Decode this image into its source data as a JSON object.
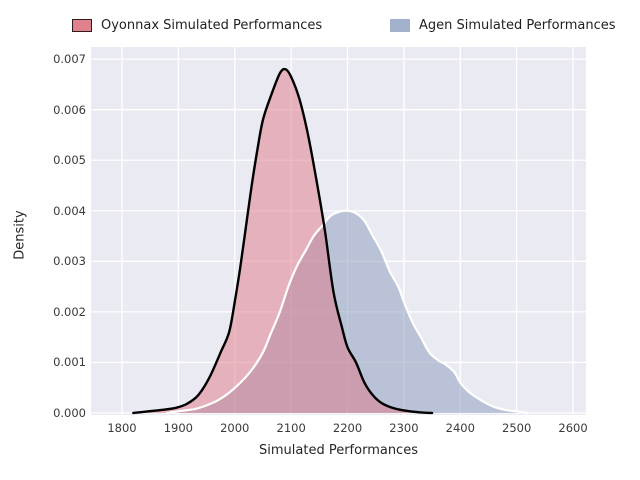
{
  "legend": {
    "items": [
      {
        "label": "Oyonnax Simulated Performances",
        "swatch_fill": "#e0818e",
        "swatch_border": "#2f1b1e"
      },
      {
        "label": "Agen Simulated Performances",
        "swatch_fill": "#a2b0cc",
        "swatch_border": "transparent"
      }
    ]
  },
  "axes": {
    "xlabel": "Simulated Performances",
    "ylabel": "Density"
  },
  "chart_data": {
    "type": "area",
    "title": "",
    "xlabel": "Simulated Performances",
    "ylabel": "Density",
    "xlim": [
      1745,
      2623
    ],
    "ylim": [
      -4e-05,
      0.00724
    ],
    "grid": true,
    "legend_position": "top",
    "plot_bg": "#eaeaf2",
    "grid_color": "#ffffff",
    "x_ticks": [
      {
        "value": 1800,
        "label": "1800"
      },
      {
        "value": 1900,
        "label": "1900"
      },
      {
        "value": 2000,
        "label": "2000"
      },
      {
        "value": 2100,
        "label": "2100"
      },
      {
        "value": 2200,
        "label": "2200"
      },
      {
        "value": 2300,
        "label": "2300"
      },
      {
        "value": 2400,
        "label": "2400"
      },
      {
        "value": 2500,
        "label": "2500"
      },
      {
        "value": 2600,
        "label": "2600"
      }
    ],
    "y_ticks": [
      {
        "value": 0.0,
        "label": "0.000"
      },
      {
        "value": 0.001,
        "label": "0.001"
      },
      {
        "value": 0.002,
        "label": "0.002"
      },
      {
        "value": 0.003,
        "label": "0.003"
      },
      {
        "value": 0.004,
        "label": "0.004"
      },
      {
        "value": 0.005,
        "label": "0.005"
      },
      {
        "value": 0.006,
        "label": "0.006"
      },
      {
        "value": 0.007,
        "label": "0.007"
      }
    ],
    "series": [
      {
        "name": "Agen Simulated Performances",
        "line_color": "#ffffff",
        "fill_color": "#889aba",
        "fill_opacity": 0.5,
        "line_width": 2.2,
        "points": [
          [
            1880,
            0
          ],
          [
            1905,
            4e-05
          ],
          [
            1930,
            8e-05
          ],
          [
            1950,
            0.00015
          ],
          [
            1970,
            0.00025
          ],
          [
            1990,
            0.0004
          ],
          [
            2010,
            0.0006
          ],
          [
            2030,
            0.00085
          ],
          [
            2050,
            0.0012
          ],
          [
            2065,
            0.0016
          ],
          [
            2080,
            0.002
          ],
          [
            2095,
            0.0025
          ],
          [
            2110,
            0.0029
          ],
          [
            2125,
            0.0032
          ],
          [
            2140,
            0.0035
          ],
          [
            2155,
            0.0037
          ],
          [
            2170,
            0.0039
          ],
          [
            2185,
            0.00398
          ],
          [
            2200,
            0.004
          ],
          [
            2215,
            0.00395
          ],
          [
            2230,
            0.0038
          ],
          [
            2245,
            0.0035
          ],
          [
            2260,
            0.0032
          ],
          [
            2275,
            0.0028
          ],
          [
            2290,
            0.0025
          ],
          [
            2300,
            0.0022
          ],
          [
            2315,
            0.0018
          ],
          [
            2330,
            0.0015
          ],
          [
            2345,
            0.0012
          ],
          [
            2360,
            0.00105
          ],
          [
            2375,
            0.00095
          ],
          [
            2390,
            0.0008
          ],
          [
            2400,
            0.0006
          ],
          [
            2415,
            0.00042
          ],
          [
            2430,
            0.0003
          ],
          [
            2445,
            0.0002
          ],
          [
            2460,
            0.00012
          ],
          [
            2480,
            6e-05
          ],
          [
            2500,
            3e-05
          ],
          [
            2520,
            0
          ]
        ]
      },
      {
        "name": "Oyonnax Simulated Performances",
        "line_color": "#000000",
        "fill_color": "#de7888",
        "fill_opacity": 0.5,
        "line_width": 2.4,
        "points": [
          [
            1820,
            0
          ],
          [
            1845,
            3e-05
          ],
          [
            1870,
            6e-05
          ],
          [
            1895,
            0.0001
          ],
          [
            1915,
            0.00018
          ],
          [
            1935,
            0.00035
          ],
          [
            1955,
            0.0007
          ],
          [
            1975,
            0.0012
          ],
          [
            1990,
            0.0016
          ],
          [
            2000,
            0.0022
          ],
          [
            2010,
            0.0029
          ],
          [
            2020,
            0.0037
          ],
          [
            2030,
            0.0045
          ],
          [
            2040,
            0.0052
          ],
          [
            2050,
            0.0058
          ],
          [
            2065,
            0.0063
          ],
          [
            2080,
            0.00672
          ],
          [
            2090,
            0.0068
          ],
          [
            2100,
            0.00665
          ],
          [
            2115,
            0.0062
          ],
          [
            2130,
            0.0055
          ],
          [
            2145,
            0.0046
          ],
          [
            2160,
            0.0036
          ],
          [
            2175,
            0.0024
          ],
          [
            2190,
            0.0017
          ],
          [
            2200,
            0.0013
          ],
          [
            2215,
            0.001
          ],
          [
            2230,
            0.0006
          ],
          [
            2245,
            0.00035
          ],
          [
            2260,
            0.0002
          ],
          [
            2280,
            0.0001
          ],
          [
            2300,
            5e-05
          ],
          [
            2330,
            1e-05
          ],
          [
            2350,
            0
          ]
        ]
      }
    ]
  }
}
